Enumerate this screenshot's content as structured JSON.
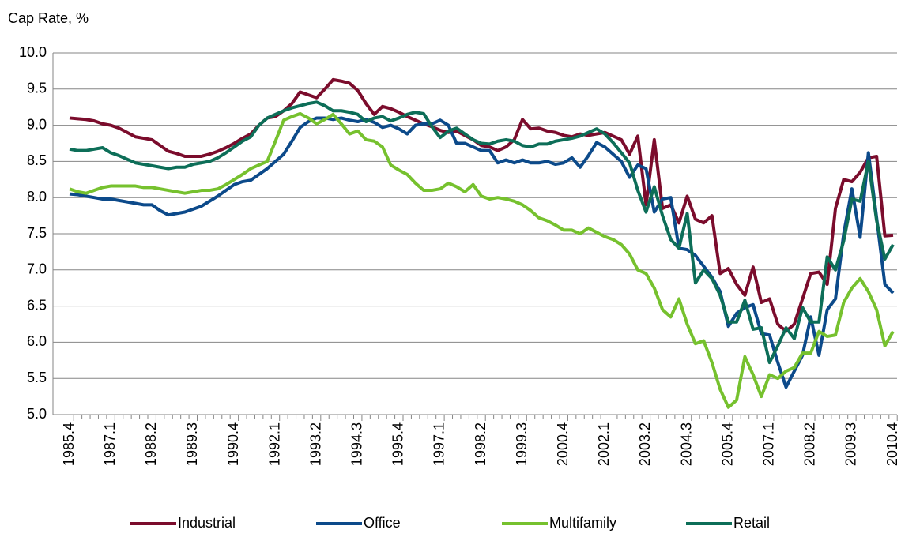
{
  "chart_data": {
    "type": "line",
    "y_label": "Cap Rate, %",
    "categories": [
      "1985.4",
      null,
      null,
      null,
      null,
      "1987.1",
      null,
      null,
      null,
      null,
      "1988.2",
      null,
      null,
      null,
      null,
      "1989.3",
      null,
      null,
      null,
      null,
      "1990.4",
      null,
      null,
      null,
      null,
      "1992.1",
      null,
      null,
      null,
      null,
      "1993.2",
      null,
      null,
      null,
      null,
      "1994.3",
      null,
      null,
      null,
      null,
      "1995.4",
      null,
      null,
      null,
      null,
      "1997.1",
      null,
      null,
      null,
      null,
      "1998.2",
      null,
      null,
      null,
      null,
      "1999.3",
      null,
      null,
      null,
      null,
      "2000.4",
      null,
      null,
      null,
      null,
      "2002.1",
      null,
      null,
      null,
      null,
      "2003.2",
      null,
      null,
      null,
      null,
      "2004.3",
      null,
      null,
      null,
      null,
      "2005.4",
      null,
      null,
      null,
      null,
      "2007.1",
      null,
      null,
      null,
      null,
      "2008.2",
      null,
      null,
      null,
      null,
      "2009.3",
      null,
      null,
      null,
      null,
      "2010.4"
    ],
    "series": [
      {
        "name": "Industrial",
        "color": "#7b0c2c",
        "values": [
          9.1,
          9.09,
          9.08,
          9.06,
          9.02,
          9.0,
          8.96,
          8.9,
          8.84,
          8.82,
          8.8,
          8.72,
          8.64,
          8.61,
          8.57,
          8.57,
          8.57,
          8.6,
          8.64,
          8.69,
          8.75,
          8.82,
          8.88,
          9.0,
          9.1,
          9.12,
          9.2,
          9.3,
          9.46,
          9.42,
          9.38,
          9.5,
          9.63,
          9.61,
          9.58,
          9.48,
          9.3,
          9.15,
          9.26,
          9.23,
          9.18,
          9.12,
          9.07,
          9.02,
          8.98,
          8.93,
          8.9,
          8.92,
          8.86,
          8.8,
          8.72,
          8.7,
          8.65,
          8.7,
          8.8,
          9.08,
          8.95,
          8.96,
          8.92,
          8.9,
          8.86,
          8.84,
          8.88,
          8.86,
          8.88,
          8.9,
          8.85,
          8.8,
          8.6,
          8.85,
          7.9,
          8.8,
          7.85,
          7.9,
          7.65,
          8.02,
          7.7,
          7.65,
          7.75,
          6.95,
          7.02,
          6.8,
          6.65,
          7.04,
          6.55,
          6.6,
          6.25,
          6.15,
          6.25,
          6.6,
          6.95,
          6.97,
          6.8,
          7.85,
          8.25,
          8.22,
          8.35,
          8.55,
          8.57,
          7.47,
          7.48
        ]
      },
      {
        "name": "Office",
        "color": "#0c4a8a",
        "values": [
          8.05,
          8.04,
          8.02,
          8.0,
          7.98,
          7.98,
          7.96,
          7.94,
          7.92,
          7.9,
          7.9,
          7.82,
          7.76,
          7.78,
          7.8,
          7.84,
          7.88,
          7.95,
          8.02,
          8.1,
          8.18,
          8.22,
          8.24,
          8.32,
          8.4,
          8.5,
          8.6,
          8.78,
          8.97,
          9.05,
          9.1,
          9.1,
          9.08,
          9.1,
          9.07,
          9.05,
          9.08,
          9.04,
          8.97,
          9.0,
          8.95,
          8.88,
          9.0,
          9.02,
          9.02,
          9.07,
          9.0,
          8.75,
          8.75,
          8.7,
          8.65,
          8.65,
          8.48,
          8.52,
          8.48,
          8.52,
          8.48,
          8.48,
          8.5,
          8.46,
          8.48,
          8.55,
          8.42,
          8.58,
          8.76,
          8.7,
          8.6,
          8.5,
          8.28,
          8.45,
          8.4,
          7.8,
          7.98,
          8.0,
          7.3,
          7.28,
          7.2,
          7.05,
          6.9,
          6.7,
          6.22,
          6.4,
          6.48,
          6.52,
          6.12,
          6.1,
          5.72,
          5.38,
          5.6,
          5.82,
          6.35,
          5.82,
          6.45,
          6.6,
          7.5,
          8.12,
          7.45,
          8.62,
          7.72,
          6.8,
          6.68
        ]
      },
      {
        "name": "Multifamily",
        "color": "#76c12e",
        "values": [
          8.12,
          8.08,
          8.06,
          8.1,
          8.14,
          8.16,
          8.16,
          8.16,
          8.16,
          8.14,
          8.14,
          8.12,
          8.1,
          8.08,
          8.06,
          8.08,
          8.1,
          8.1,
          8.12,
          8.18,
          8.25,
          8.32,
          8.4,
          8.45,
          8.5,
          8.78,
          9.07,
          9.12,
          9.16,
          9.1,
          9.02,
          9.08,
          9.15,
          9.02,
          8.88,
          8.92,
          8.8,
          8.78,
          8.7,
          8.45,
          8.38,
          8.32,
          8.2,
          8.1,
          8.1,
          8.12,
          8.2,
          8.15,
          8.08,
          8.18,
          8.02,
          7.98,
          8.0,
          7.98,
          7.95,
          7.9,
          7.82,
          7.72,
          7.68,
          7.62,
          7.55,
          7.55,
          7.5,
          7.58,
          7.52,
          7.46,
          7.42,
          7.35,
          7.22,
          7.0,
          6.95,
          6.75,
          6.45,
          6.35,
          6.6,
          6.25,
          5.98,
          6.02,
          5.72,
          5.35,
          5.1,
          5.2,
          5.8,
          5.55,
          5.25,
          5.55,
          5.5,
          5.6,
          5.65,
          5.85,
          5.85,
          6.15,
          6.08,
          6.1,
          6.55,
          6.75,
          6.88,
          6.7,
          6.45,
          5.95,
          6.15
        ]
      },
      {
        "name": "Retail",
        "color": "#0d6e58",
        "values": [
          8.67,
          8.65,
          8.65,
          8.67,
          8.69,
          8.62,
          8.58,
          8.53,
          8.48,
          8.46,
          8.44,
          8.42,
          8.4,
          8.42,
          8.42,
          8.46,
          8.48,
          8.5,
          8.55,
          8.62,
          8.7,
          8.78,
          8.84,
          9.0,
          9.1,
          9.15,
          9.2,
          9.24,
          9.27,
          9.3,
          9.32,
          9.27,
          9.2,
          9.2,
          9.18,
          9.15,
          9.05,
          9.1,
          9.12,
          9.06,
          9.1,
          9.15,
          9.18,
          9.16,
          8.98,
          8.83,
          8.92,
          8.96,
          8.88,
          8.8,
          8.75,
          8.74,
          8.78,
          8.8,
          8.78,
          8.72,
          8.7,
          8.74,
          8.74,
          8.78,
          8.8,
          8.82,
          8.85,
          8.9,
          8.95,
          8.88,
          8.76,
          8.62,
          8.48,
          8.1,
          7.8,
          8.15,
          7.75,
          7.42,
          7.3,
          7.78,
          6.82,
          7.0,
          6.88,
          6.65,
          6.28,
          6.28,
          6.58,
          6.18,
          6.2,
          5.72,
          5.95,
          6.2,
          6.05,
          6.48,
          6.28,
          6.28,
          7.18,
          7.0,
          7.4,
          7.98,
          7.95,
          8.5,
          7.68,
          7.15,
          7.35
        ]
      }
    ],
    "ylim": [
      5,
      10
    ],
    "yticks": [
      {
        "value": 5,
        "label": "5.0"
      },
      5.5,
      {
        "value": 6,
        "label": "6.0"
      },
      6.5,
      {
        "value": 7,
        "label": "7.0"
      },
      7.5,
      {
        "value": 8,
        "label": "8.0"
      },
      8.5,
      {
        "value": 9,
        "label": "9.0"
      },
      9.5,
      {
        "value": 10,
        "label": "10.0"
      }
    ],
    "grid": true,
    "legend": "bottom"
  }
}
